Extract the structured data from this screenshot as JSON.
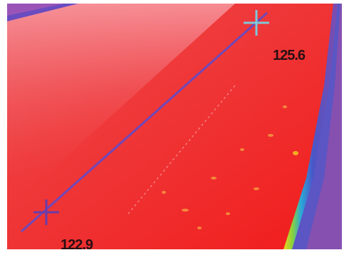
{
  "markers": [
    {
      "label": "125.6"
    },
    {
      "label": "122.9"
    }
  ]
}
